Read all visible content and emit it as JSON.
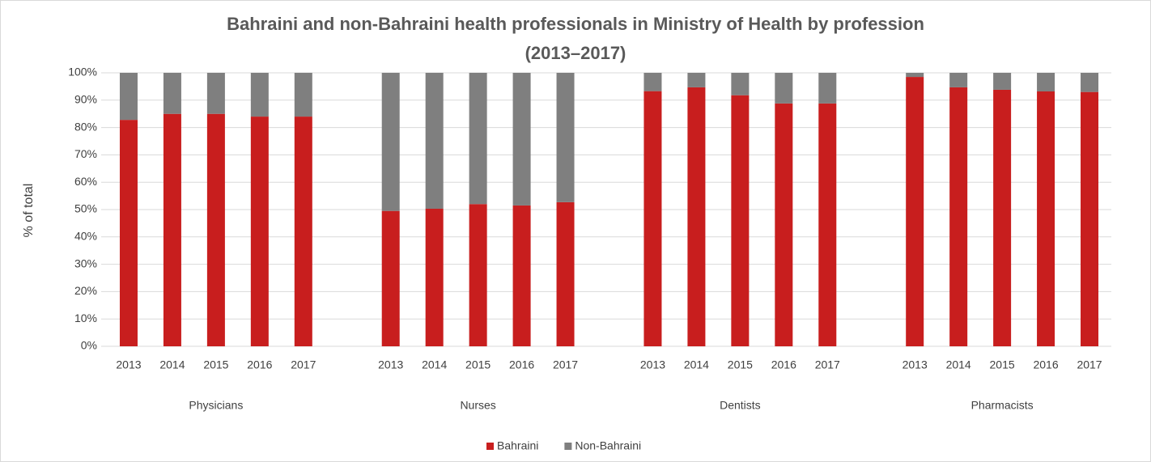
{
  "chart_data": {
    "type": "stacked_bar",
    "title": [
      "Bahraini and non-Bahraini health professionals in Ministry of Health by profession",
      "(2013–2017)"
    ],
    "y_label": "% of total",
    "groups": [
      "Physicians",
      "Nurses",
      "Dentists",
      "Pharmacists"
    ],
    "categories": [
      "2013",
      "2014",
      "2015",
      "2016",
      "2017",
      "2013",
      "2014",
      "2015",
      "2016",
      "2017",
      "2013",
      "2014",
      "2015",
      "2016",
      "2017",
      "2013",
      "2014",
      "2015",
      "2016",
      "2017"
    ],
    "series": [
      {
        "name": "Bahraini",
        "color": "#c81e1e",
        "values": [
          82.8,
          85,
          85,
          84,
          84,
          49.5,
          50.3,
          52,
          51.5,
          52.7,
          93.3,
          94.7,
          91.8,
          88.8,
          88.8,
          98.5,
          94.7,
          93.8,
          93.2,
          93
        ]
      },
      {
        "name": "Non-Bahraini",
        "color": "#7f7f7f",
        "values": [
          17.2,
          15,
          15,
          16,
          16,
          50.5,
          49.7,
          48,
          48.5,
          47.3,
          6.7,
          5.3,
          8.2,
          11.2,
          11.2,
          1.5,
          5.3,
          6.2,
          6.8,
          7
        ]
      }
    ],
    "ylim": [
      0,
      100
    ],
    "yticks": [
      {
        "value": 0,
        "label": "0%"
      },
      {
        "value": 10,
        "label": "10%"
      },
      {
        "value": 20,
        "label": "20%"
      },
      {
        "value": 30,
        "label": "30%"
      },
      {
        "value": 40,
        "label": "40%"
      },
      {
        "value": 50,
        "label": "50%"
      },
      {
        "value": 60,
        "label": "60%"
      },
      {
        "value": 70,
        "label": "70%"
      },
      {
        "value": 80,
        "label": "80%"
      },
      {
        "value": 90,
        "label": "90%"
      },
      {
        "value": 100,
        "label": "100%"
      }
    ],
    "grid": true,
    "legend": "bottom"
  }
}
